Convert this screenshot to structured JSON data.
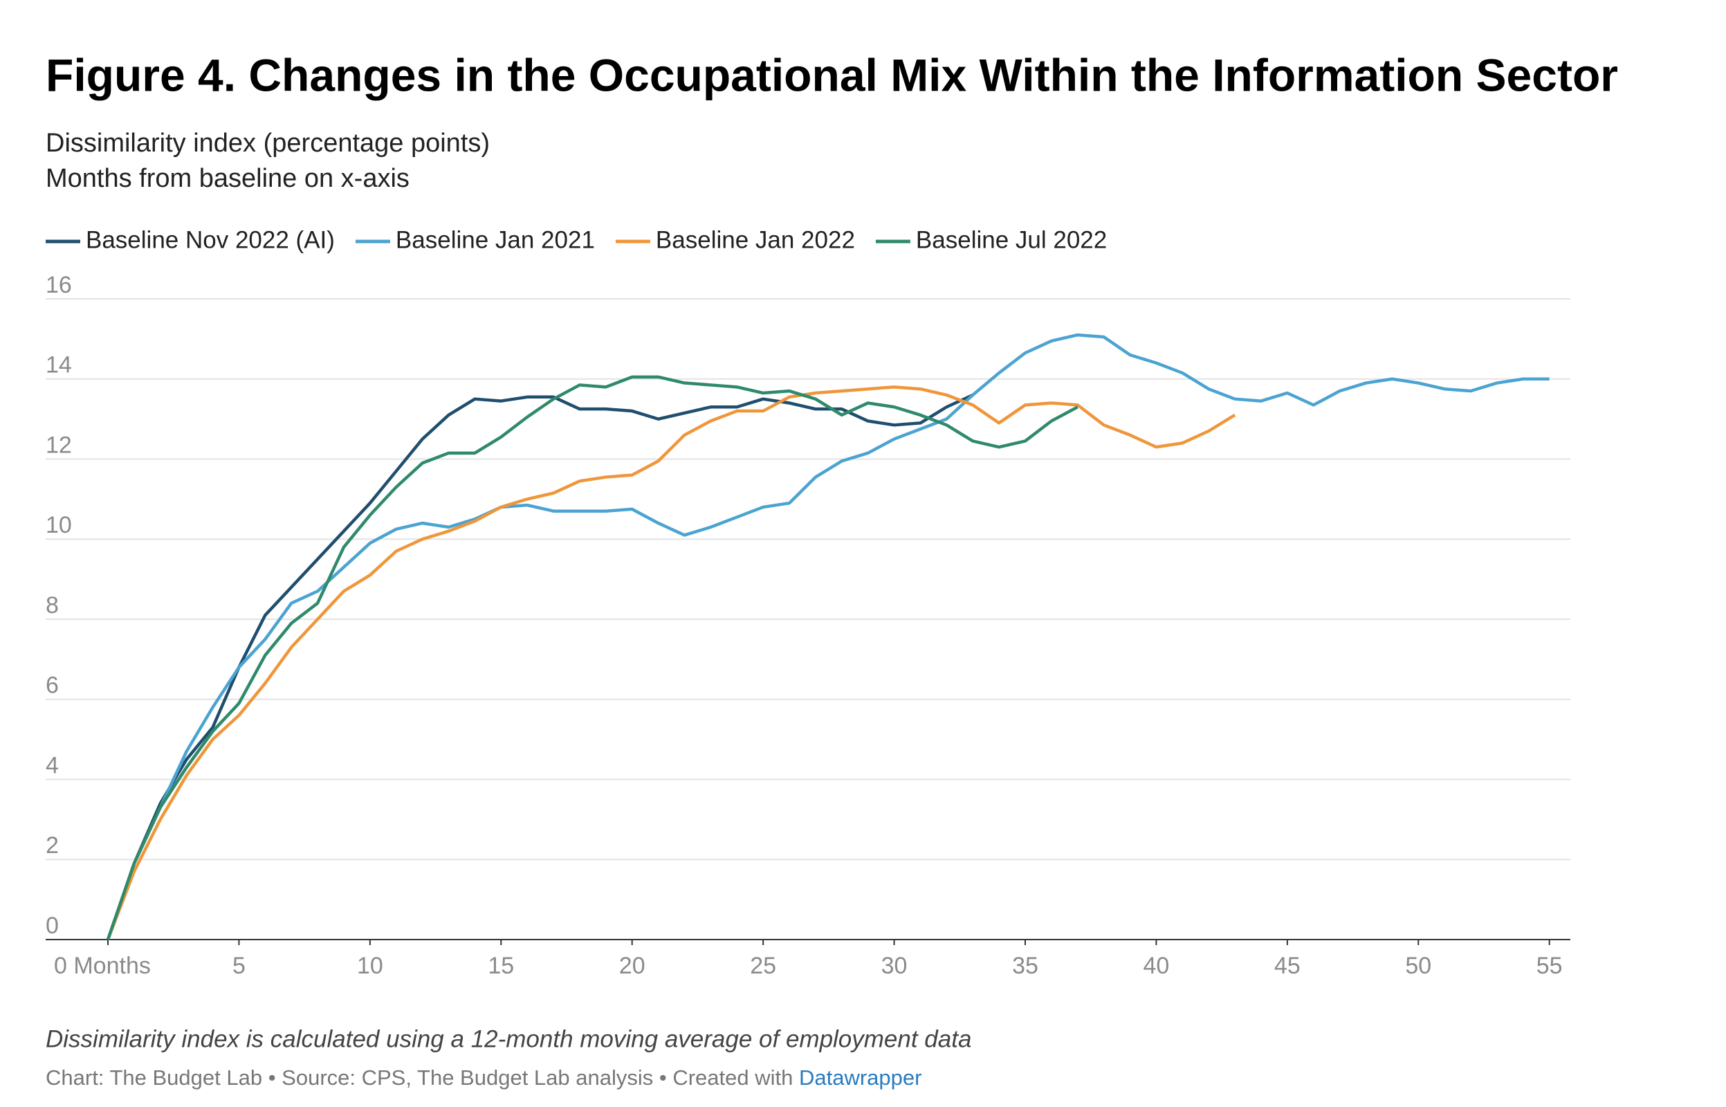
{
  "chart_data": {
    "type": "line",
    "title": "Figure 4. Changes in the Occupational Mix Within the Information Sector",
    "subtitle": [
      "Dissimilarity index (percentage points)",
      "Months from baseline on x-axis"
    ],
    "x": [
      0,
      1,
      2,
      3,
      4,
      5,
      6,
      7,
      8,
      9,
      10,
      11,
      12,
      13,
      14,
      15,
      16,
      17,
      18,
      19,
      20,
      21,
      22,
      23,
      24,
      25,
      26,
      27,
      28,
      29,
      30,
      31,
      32,
      33,
      34,
      35,
      36,
      37,
      38,
      39,
      40,
      41,
      42,
      43,
      44,
      45,
      46,
      47,
      48,
      49,
      50,
      51,
      52,
      53,
      54,
      55
    ],
    "series": [
      {
        "name": "Baseline Nov 2022 (AI)",
        "color": "#1f4e6e",
        "values": [
          0,
          1.9,
          3.4,
          4.5,
          5.3,
          6.8,
          8.1,
          8.8,
          9.5,
          10.2,
          10.9,
          11.7,
          12.5,
          13.1,
          13.5,
          13.45,
          13.55,
          13.55,
          13.25,
          13.25,
          13.2,
          13.0,
          13.15,
          13.3,
          13.3,
          13.5,
          13.4,
          13.25,
          13.25,
          12.95,
          12.85,
          12.9,
          13.3,
          13.6,
          null,
          null,
          null,
          null,
          null,
          null,
          null,
          null,
          null,
          null,
          null,
          null,
          null,
          null,
          null,
          null,
          null,
          null,
          null,
          null,
          null,
          null
        ]
      },
      {
        "name": "Baseline Jan 2021",
        "color": "#4ba3d1",
        "values": [
          0,
          1.9,
          3.3,
          4.7,
          5.8,
          6.8,
          7.5,
          8.4,
          8.7,
          9.3,
          9.9,
          10.25,
          10.4,
          10.3,
          10.5,
          10.8,
          10.85,
          10.7,
          10.7,
          10.7,
          10.75,
          10.4,
          10.1,
          10.3,
          10.55,
          10.8,
          10.9,
          11.55,
          11.95,
          12.15,
          12.5,
          12.75,
          13.0,
          13.6,
          14.15,
          14.65,
          14.95,
          15.1,
          15.05,
          14.6,
          14.4,
          14.15,
          13.75,
          13.5,
          13.45,
          13.65,
          13.35,
          13.7,
          13.9,
          14.0,
          13.9,
          13.75,
          13.7,
          13.9,
          14.0,
          14.0
        ]
      },
      {
        "name": "Baseline Jan 2022",
        "color": "#f0963a",
        "values": [
          0,
          1.7,
          3.0,
          4.1,
          5.0,
          5.6,
          6.4,
          7.3,
          8.0,
          8.7,
          9.1,
          9.7,
          10.0,
          10.2,
          10.45,
          10.8,
          11.0,
          11.15,
          11.45,
          11.55,
          11.6,
          11.95,
          12.6,
          12.95,
          13.2,
          13.2,
          13.55,
          13.65,
          13.7,
          13.75,
          13.8,
          13.75,
          13.6,
          13.35,
          12.9,
          13.35,
          13.4,
          13.35,
          12.85,
          12.6,
          12.3,
          12.4,
          12.7,
          13.1,
          null,
          null,
          null,
          null,
          null,
          null,
          null,
          null,
          null,
          null,
          null,
          null
        ]
      },
      {
        "name": "Baseline Jul 2022",
        "color": "#2e8a6a",
        "values": [
          0,
          1.9,
          3.3,
          4.3,
          5.2,
          5.9,
          7.1,
          7.9,
          8.4,
          9.8,
          10.6,
          11.3,
          11.9,
          12.15,
          12.15,
          12.55,
          13.05,
          13.5,
          13.85,
          13.8,
          14.05,
          14.05,
          13.9,
          13.85,
          13.8,
          13.65,
          13.7,
          13.5,
          13.1,
          13.4,
          13.3,
          13.1,
          12.85,
          12.45,
          12.3,
          12.45,
          12.95,
          13.3,
          null,
          null,
          null,
          null,
          null,
          null,
          null,
          null,
          null,
          null,
          null,
          null,
          null,
          null,
          null,
          null,
          null,
          null
        ]
      }
    ],
    "xlim": [
      0,
      55.8
    ],
    "ylim": [
      0,
      16
    ],
    "xticks": [
      {
        "value": 0,
        "label": "0 Months"
      },
      5,
      10,
      15,
      20,
      25,
      30,
      35,
      40,
      45,
      50,
      55
    ],
    "yticks": [
      0,
      2,
      4,
      6,
      8,
      10,
      12,
      14,
      16
    ],
    "grid": true,
    "notes": {
      "caption": "Dissimilarity index is calculated using a 12-month moving average of employment data",
      "source_text": "Chart: The Budget Lab • Source: CPS, The Budget Lab analysis • Created with ",
      "source_link": "Datawrapper"
    }
  }
}
